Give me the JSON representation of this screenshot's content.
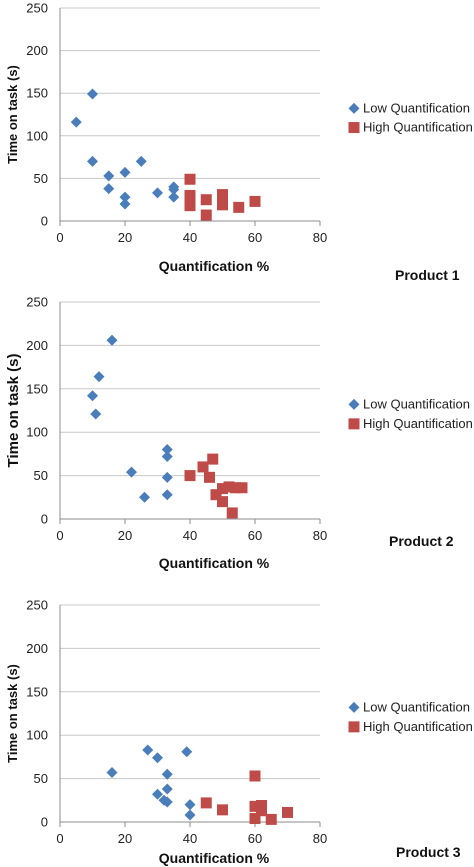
{
  "chart_data": [
    {
      "type": "scatter",
      "panel_label": "Product 1",
      "xlabel": "Quantification %",
      "ylabel": "Time on task (s)",
      "xlim": [
        0,
        80
      ],
      "ylim": [
        0,
        250
      ],
      "x_ticks": [
        "0",
        "20",
        "40",
        "60",
        "80"
      ],
      "y_ticks": [
        "0",
        "50",
        "100",
        "150",
        "200",
        "250"
      ],
      "grid": "horizontal",
      "legend_position": "right",
      "series": [
        {
          "name": "Low Quantification",
          "color": "#4a7ebb",
          "marker": "diamond",
          "points": [
            [
              5,
              116
            ],
            [
              10,
              149
            ],
            [
              10,
              70
            ],
            [
              15,
              53
            ],
            [
              15,
              38
            ],
            [
              20,
              57
            ],
            [
              20,
              28
            ],
            [
              20,
              20
            ],
            [
              25,
              70
            ],
            [
              30,
              33
            ],
            [
              35,
              40
            ],
            [
              35,
              37
            ],
            [
              35,
              28
            ]
          ]
        },
        {
          "name": "High Quantification",
          "color": "#be4b48",
          "marker": "square",
          "points": [
            [
              40,
              49
            ],
            [
              40,
              30
            ],
            [
              40,
              22
            ],
            [
              40,
              18
            ],
            [
              45,
              25
            ],
            [
              45,
              7
            ],
            [
              50,
              31
            ],
            [
              50,
              25
            ],
            [
              50,
              19
            ],
            [
              55,
              16
            ],
            [
              60,
              23
            ]
          ]
        }
      ]
    },
    {
      "type": "scatter",
      "panel_label": "Product 2",
      "xlabel": "Quantification %",
      "ylabel": "Time on task (s)",
      "xlim": [
        0,
        80
      ],
      "ylim": [
        0,
        250
      ],
      "x_ticks": [
        "0",
        "20",
        "40",
        "60",
        "80"
      ],
      "y_ticks": [
        "0",
        "50",
        "100",
        "150",
        "200",
        "250"
      ],
      "grid": "horizontal",
      "legend_position": "right",
      "series": [
        {
          "name": "Low Quantification",
          "color": "#4a7ebb",
          "marker": "diamond",
          "points": [
            [
              16,
              206
            ],
            [
              12,
              164
            ],
            [
              10,
              142
            ],
            [
              11,
              121
            ],
            [
              22,
              54
            ],
            [
              26,
              25
            ],
            [
              33,
              80
            ],
            [
              33,
              72
            ],
            [
              33,
              48
            ],
            [
              33,
              28
            ]
          ]
        },
        {
          "name": "High Quantification",
          "color": "#be4b48",
          "marker": "square",
          "points": [
            [
              40,
              50
            ],
            [
              44,
              60
            ],
            [
              46,
              48
            ],
            [
              47,
              69
            ],
            [
              48,
              28
            ],
            [
              50,
              35
            ],
            [
              50,
              20
            ],
            [
              52,
              37
            ],
            [
              54,
              36
            ],
            [
              56,
              36
            ],
            [
              53,
              7
            ]
          ]
        }
      ]
    },
    {
      "type": "scatter",
      "panel_label": "Product 3",
      "xlabel": "Quantification %",
      "ylabel": "Time on task (s)",
      "xlim": [
        0,
        80
      ],
      "ylim": [
        0,
        250
      ],
      "x_ticks": [
        "0",
        "20",
        "40",
        "60",
        "80"
      ],
      "y_ticks": [
        "0",
        "50",
        "100",
        "150",
        "200",
        "250"
      ],
      "grid": "horizontal",
      "legend_position": "right",
      "series": [
        {
          "name": "Low Quantification",
          "color": "#4a7ebb",
          "marker": "diamond",
          "points": [
            [
              16,
              57
            ],
            [
              27,
              83
            ],
            [
              30,
              74
            ],
            [
              30,
              32
            ],
            [
              32,
              25
            ],
            [
              33,
              55
            ],
            [
              33,
              38
            ],
            [
              33,
              23
            ],
            [
              39,
              81
            ],
            [
              40,
              20
            ],
            [
              40,
              8
            ]
          ]
        },
        {
          "name": "High Quantification",
          "color": "#be4b48",
          "marker": "square",
          "points": [
            [
              45,
              22
            ],
            [
              50,
              14
            ],
            [
              60,
              53
            ],
            [
              60,
              18
            ],
            [
              60,
              4
            ],
            [
              62,
              19
            ],
            [
              62,
              13
            ],
            [
              65,
              3
            ],
            [
              70,
              11
            ]
          ]
        }
      ]
    }
  ]
}
